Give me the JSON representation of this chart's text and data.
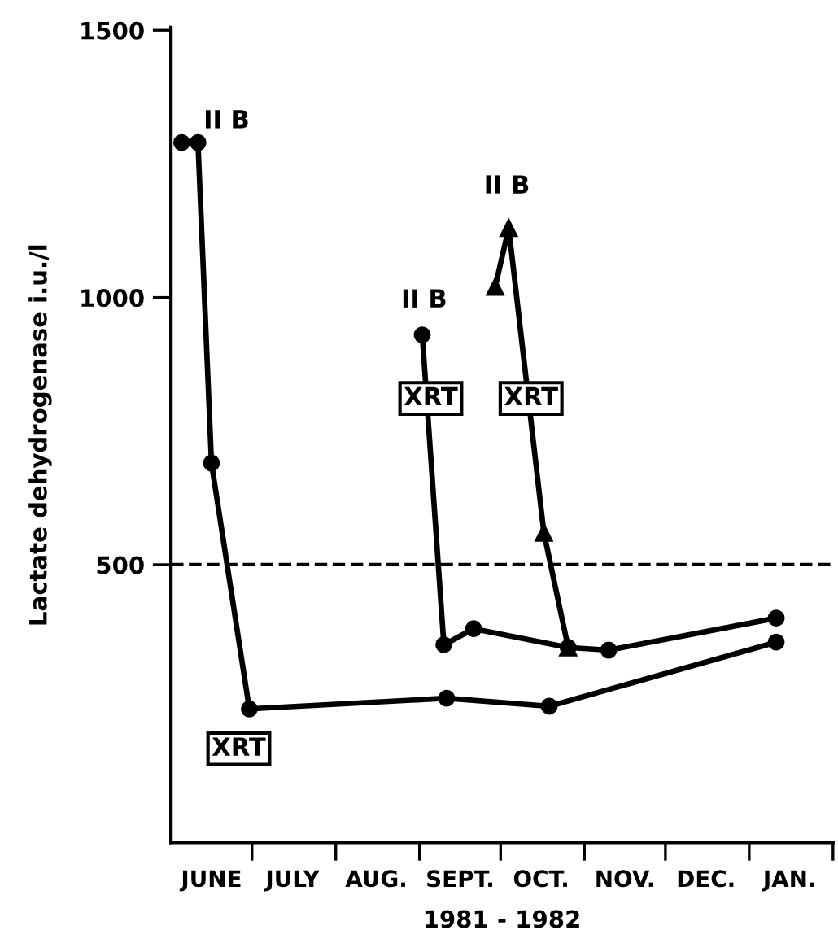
{
  "chart_data": {
    "type": "line",
    "xlabel": "1981 - 1982",
    "ylabel": "Lactate dehydrogenase i.u./l",
    "xlim": [
      "1981-06-01",
      "1982-02-01"
    ],
    "ylim": [
      -20,
      1505
    ],
    "yticks": [
      500,
      1000,
      1500
    ],
    "xticks": [
      {
        "value": "1981-06-16",
        "label": "JUNE"
      },
      {
        "value": "1981-07-16",
        "label": "JULY"
      },
      {
        "value": "1981-08-16",
        "label": "AUG."
      },
      {
        "value": "1981-09-16",
        "label": "SEPT."
      },
      {
        "value": "1981-10-16",
        "label": "OCT."
      },
      {
        "value": "1981-11-16",
        "label": "NOV."
      },
      {
        "value": "1981-12-16",
        "label": "DEC."
      },
      {
        "value": "1982-01-16",
        "label": "JAN."
      },
      {
        "value": "1981-07-01",
        "label": null
      },
      {
        "value": "1981-08-01",
        "label": null
      },
      {
        "value": "1981-09-01",
        "label": null
      },
      {
        "value": "1981-10-01",
        "label": null
      },
      {
        "value": "1981-11-01",
        "label": null
      },
      {
        "value": "1981-12-01",
        "label": null
      },
      {
        "value": "1982-01-01",
        "label": null
      },
      {
        "value": "1982-02-01",
        "label": null
      }
    ],
    "grid": false,
    "legend": false,
    "line_style": "solid",
    "series": [
      {
        "color": "#000000",
        "marker": "circle",
        "x": [
          "1981-06-05",
          "1981-06-11",
          "1981-06-16",
          "1981-06-30",
          "1981-09-11",
          "1981-10-19",
          "1982-01-11"
        ],
        "values": [
          1290,
          1290,
          690,
          230,
          250,
          235,
          355
        ]
      },
      {
        "color": "#000000",
        "marker": "circle",
        "x": [
          "1981-09-02",
          "1981-09-10",
          "1981-09-21",
          "1981-10-26",
          "1981-11-10",
          "1982-01-11"
        ],
        "values": [
          930,
          350,
          380,
          345,
          340,
          400
        ]
      },
      {
        "color": "#000000",
        "marker": "triangle",
        "x": [
          "1981-09-29",
          "1981-10-04",
          "1981-10-17",
          "1981-10-26"
        ],
        "values": [
          1020,
          1130,
          560,
          345
        ]
      }
    ],
    "ref_lines": [
      {
        "axis": "y",
        "value": 500,
        "color": "#000000",
        "line_style": "dashed"
      }
    ],
    "annotations": [
      "II B",
      "II B",
      "II B",
      "XRT",
      "XRT",
      "XRT"
    ]
  }
}
